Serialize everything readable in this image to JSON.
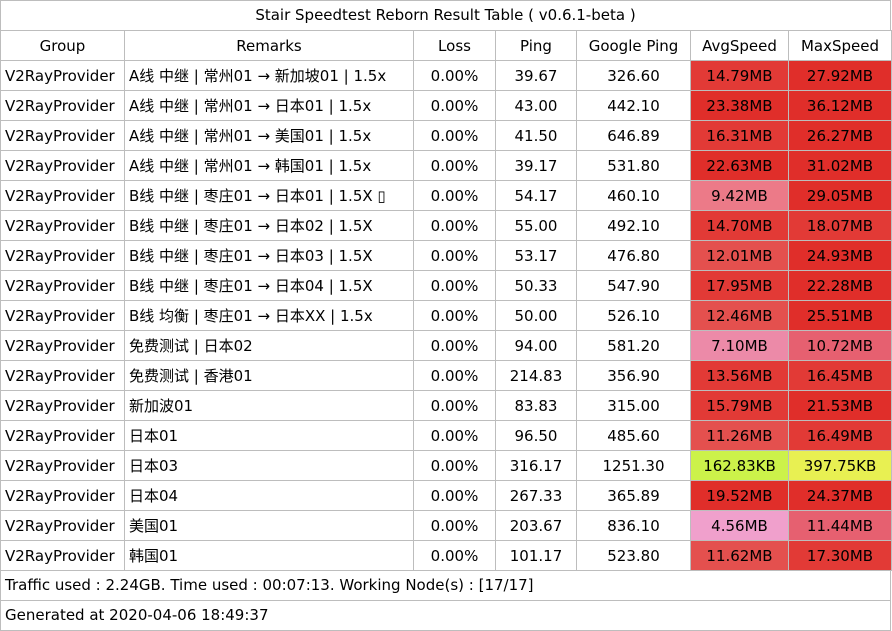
{
  "title": "Stair Speedtest Reborn Result Table ( v0.6.1-beta )",
  "columns": [
    "Group",
    "Remarks",
    "Loss",
    "Ping",
    "Google Ping",
    "AvgSpeed",
    "MaxSpeed"
  ],
  "rows": [
    {
      "group": "V2RayProvider",
      "remarks": "A线 中继 | 常州01 → 新加坡01 | 1.5x",
      "loss": "0.00%",
      "ping": "39.67",
      "gping": "326.60",
      "avg": "14.79MB",
      "max": "27.92MB",
      "avg_color": "#e23a36",
      "max_color": "#e02e2a"
    },
    {
      "group": "V2RayProvider",
      "remarks": "A线 中继 | 常州01 → 日本01 | 1.5x",
      "loss": "0.00%",
      "ping": "43.00",
      "gping": "442.10",
      "avg": "23.38MB",
      "max": "36.12MB",
      "avg_color": "#e02e2a",
      "max_color": "#e02e2a"
    },
    {
      "group": "V2RayProvider",
      "remarks": "A线 中继 | 常州01 → 美国01 | 1.5x",
      "loss": "0.00%",
      "ping": "41.50",
      "gping": "646.89",
      "avg": "16.31MB",
      "max": "26.27MB",
      "avg_color": "#e23a36",
      "max_color": "#e02e2a"
    },
    {
      "group": "V2RayProvider",
      "remarks": "A线 中继 | 常州01 → 韩国01 | 1.5x",
      "loss": "0.00%",
      "ping": "39.17",
      "gping": "531.80",
      "avg": "22.63MB",
      "max": "31.02MB",
      "avg_color": "#e02e2a",
      "max_color": "#e02e2a"
    },
    {
      "group": "V2RayProvider",
      "remarks": "B线 中继 | 枣庄01 → 日本01 | 1.5X ▯",
      "loss": "0.00%",
      "ping": "54.17",
      "gping": "460.10",
      "avg": "9.42MB",
      "max": "29.05MB",
      "avg_color": "#ec7a88",
      "max_color": "#e02e2a"
    },
    {
      "group": "V2RayProvider",
      "remarks": "B线 中继 | 枣庄01 → 日本02 | 1.5X",
      "loss": "0.00%",
      "ping": "55.00",
      "gping": "492.10",
      "avg": "14.70MB",
      "max": "18.07MB",
      "avg_color": "#e23a36",
      "max_color": "#e23a36"
    },
    {
      "group": "V2RayProvider",
      "remarks": "B线 中继 | 枣庄01 → 日本03 | 1.5X",
      "loss": "0.00%",
      "ping": "53.17",
      "gping": "476.80",
      "avg": "12.01MB",
      "max": "24.93MB",
      "avg_color": "#e4504e",
      "max_color": "#e02e2a"
    },
    {
      "group": "V2RayProvider",
      "remarks": "B线 中继 | 枣庄01 → 日本04 | 1.5X",
      "loss": "0.00%",
      "ping": "50.33",
      "gping": "547.90",
      "avg": "17.95MB",
      "max": "22.28MB",
      "avg_color": "#e23a36",
      "max_color": "#e02e2a"
    },
    {
      "group": "V2RayProvider",
      "remarks": "B线 均衡 | 枣庄01 → 日本XX | 1.5x",
      "loss": "0.00%",
      "ping": "50.00",
      "gping": "526.10",
      "avg": "12.46MB",
      "max": "25.51MB",
      "avg_color": "#e4504e",
      "max_color": "#e02e2a"
    },
    {
      "group": "V2RayProvider",
      "remarks": "免费测试 | 日本02",
      "loss": "0.00%",
      "ping": "94.00",
      "gping": "581.20",
      "avg": "7.10MB",
      "max": "10.72MB",
      "avg_color": "#ec8aa8",
      "max_color": "#e66070"
    },
    {
      "group": "V2RayProvider",
      "remarks": "免费测试 | 香港01",
      "loss": "0.00%",
      "ping": "214.83",
      "gping": "356.90",
      "avg": "13.56MB",
      "max": "16.45MB",
      "avg_color": "#e23a36",
      "max_color": "#e23a36"
    },
    {
      "group": "V2RayProvider",
      "remarks": "新加波01",
      "loss": "0.00%",
      "ping": "83.83",
      "gping": "315.00",
      "avg": "15.79MB",
      "max": "21.53MB",
      "avg_color": "#e23a36",
      "max_color": "#e02e2a"
    },
    {
      "group": "V2RayProvider",
      "remarks": "日本01",
      "loss": "0.00%",
      "ping": "96.50",
      "gping": "485.60",
      "avg": "11.26MB",
      "max": "16.49MB",
      "avg_color": "#e4504e",
      "max_color": "#e23a36"
    },
    {
      "group": "V2RayProvider",
      "remarks": "日本03",
      "loss": "0.00%",
      "ping": "316.17",
      "gping": "1251.30",
      "avg": "162.83KB",
      "max": "397.75KB",
      "avg_color": "#ccf24a",
      "max_color": "#e8f052"
    },
    {
      "group": "V2RayProvider",
      "remarks": "日本04",
      "loss": "0.00%",
      "ping": "267.33",
      "gping": "365.89",
      "avg": "19.52MB",
      "max": "24.37MB",
      "avg_color": "#e02e2a",
      "max_color": "#e02e2a"
    },
    {
      "group": "V2RayProvider",
      "remarks": "美国01",
      "loss": "0.00%",
      "ping": "203.67",
      "gping": "836.10",
      "avg": "4.56MB",
      "max": "11.44MB",
      "avg_color": "#f0a0cc",
      "max_color": "#e66070"
    },
    {
      "group": "V2RayProvider",
      "remarks": "韩国01",
      "loss": "0.00%",
      "ping": "101.17",
      "gping": "523.80",
      "avg": "11.62MB",
      "max": "17.30MB",
      "avg_color": "#e4504e",
      "max_color": "#e23a36"
    }
  ],
  "footer": {
    "traffic": "Traffic used : 2.24GB. Time used : 00:07:13. Working Node(s) : [17/17]",
    "generated": "Generated at 2020-04-06 18:49:37"
  }
}
